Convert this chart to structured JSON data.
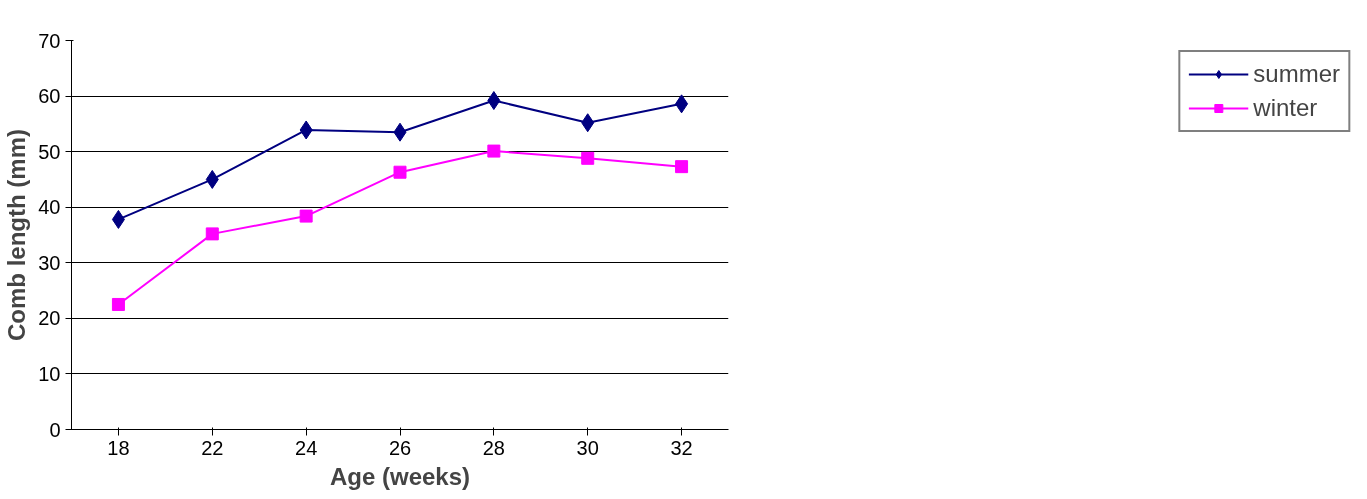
{
  "chart_data": {
    "type": "line",
    "xlabel": "Age (weeks)",
    "ylabel": "Comb length (mm)",
    "categories": [
      "18",
      "22",
      "24",
      "26",
      "28",
      "30",
      "32"
    ],
    "series": [
      {
        "name": "summer",
        "color": "#000080",
        "marker": "diamond",
        "values": [
          37.8,
          45,
          53.9,
          53.5,
          59.2,
          55.2,
          58.6
        ]
      },
      {
        "name": "winter",
        "color": "#ff00ff",
        "marker": "square",
        "values": [
          22.5,
          35.2,
          38.4,
          46.3,
          50.1,
          48.8,
          47.3
        ]
      }
    ],
    "ylim": [
      0,
      70
    ],
    "yticks": [
      0,
      10,
      20,
      30,
      40,
      50,
      60,
      70
    ],
    "grid": "y",
    "legend": "right",
    "line_style": "solid"
  }
}
